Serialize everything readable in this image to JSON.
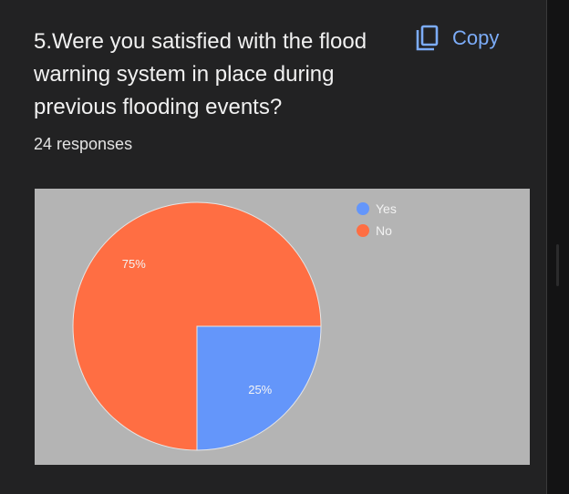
{
  "question": {
    "lines": [
      "5.Were you satisfied with the flood",
      "warning system in place during",
      "previous flooding events?"
    ]
  },
  "copy_button": {
    "label": "Copy",
    "icon": "copy-icon"
  },
  "responses_text": "24 responses",
  "colors": {
    "card_bg": "#222223",
    "chart_bg": "#b4b4b4",
    "accent": "#7cacf8"
  },
  "chart_data": {
    "type": "pie",
    "categories": [
      "Yes",
      "No"
    ],
    "values": [
      25,
      75
    ],
    "data_labels": [
      "25%",
      "75%"
    ],
    "colors": [
      "#6496fa",
      "#ff6e43"
    ],
    "legend_position": "top-right",
    "start_angle_deg": 90,
    "direction": "clockwise"
  }
}
